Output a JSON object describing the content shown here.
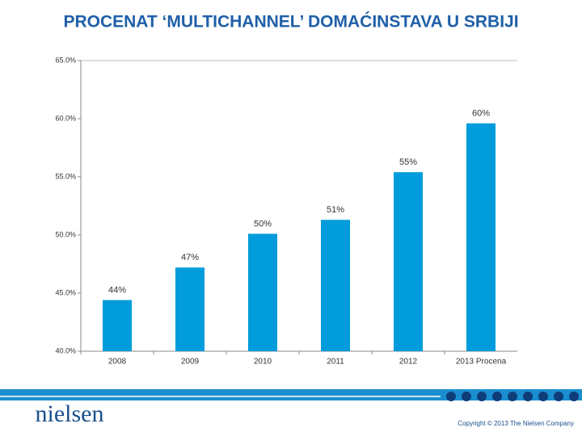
{
  "chart_data": {
    "type": "bar",
    "title": "PROCENAT ‘MULTICHANNEL’ DOMAĆINSTAVA U SRBIJI",
    "categories": [
      "2008",
      "2009",
      "2010",
      "2011",
      "2012",
      "2013 Procena"
    ],
    "values": [
      44.4,
      47.2,
      50.1,
      51.3,
      55.4,
      59.6
    ],
    "value_labels": [
      "44%",
      "47%",
      "50%",
      "51%",
      "55%",
      "60%"
    ],
    "color": "#009cdb",
    "ylim": [
      40,
      65
    ],
    "yticks": [
      {
        "value": 40,
        "label": "40.0%"
      },
      {
        "value": 45,
        "label": "45.0%"
      },
      {
        "value": 50,
        "label": "50.0%"
      },
      {
        "value": 55,
        "label": "55.0%"
      },
      {
        "value": 60,
        "label": "60.0%"
      },
      {
        "value": 65,
        "label": "65.0%"
      }
    ],
    "grid": false
  },
  "footer": {
    "logo": "nielsen",
    "copyright": "Copyright © 2013 The Nielsen Company"
  }
}
